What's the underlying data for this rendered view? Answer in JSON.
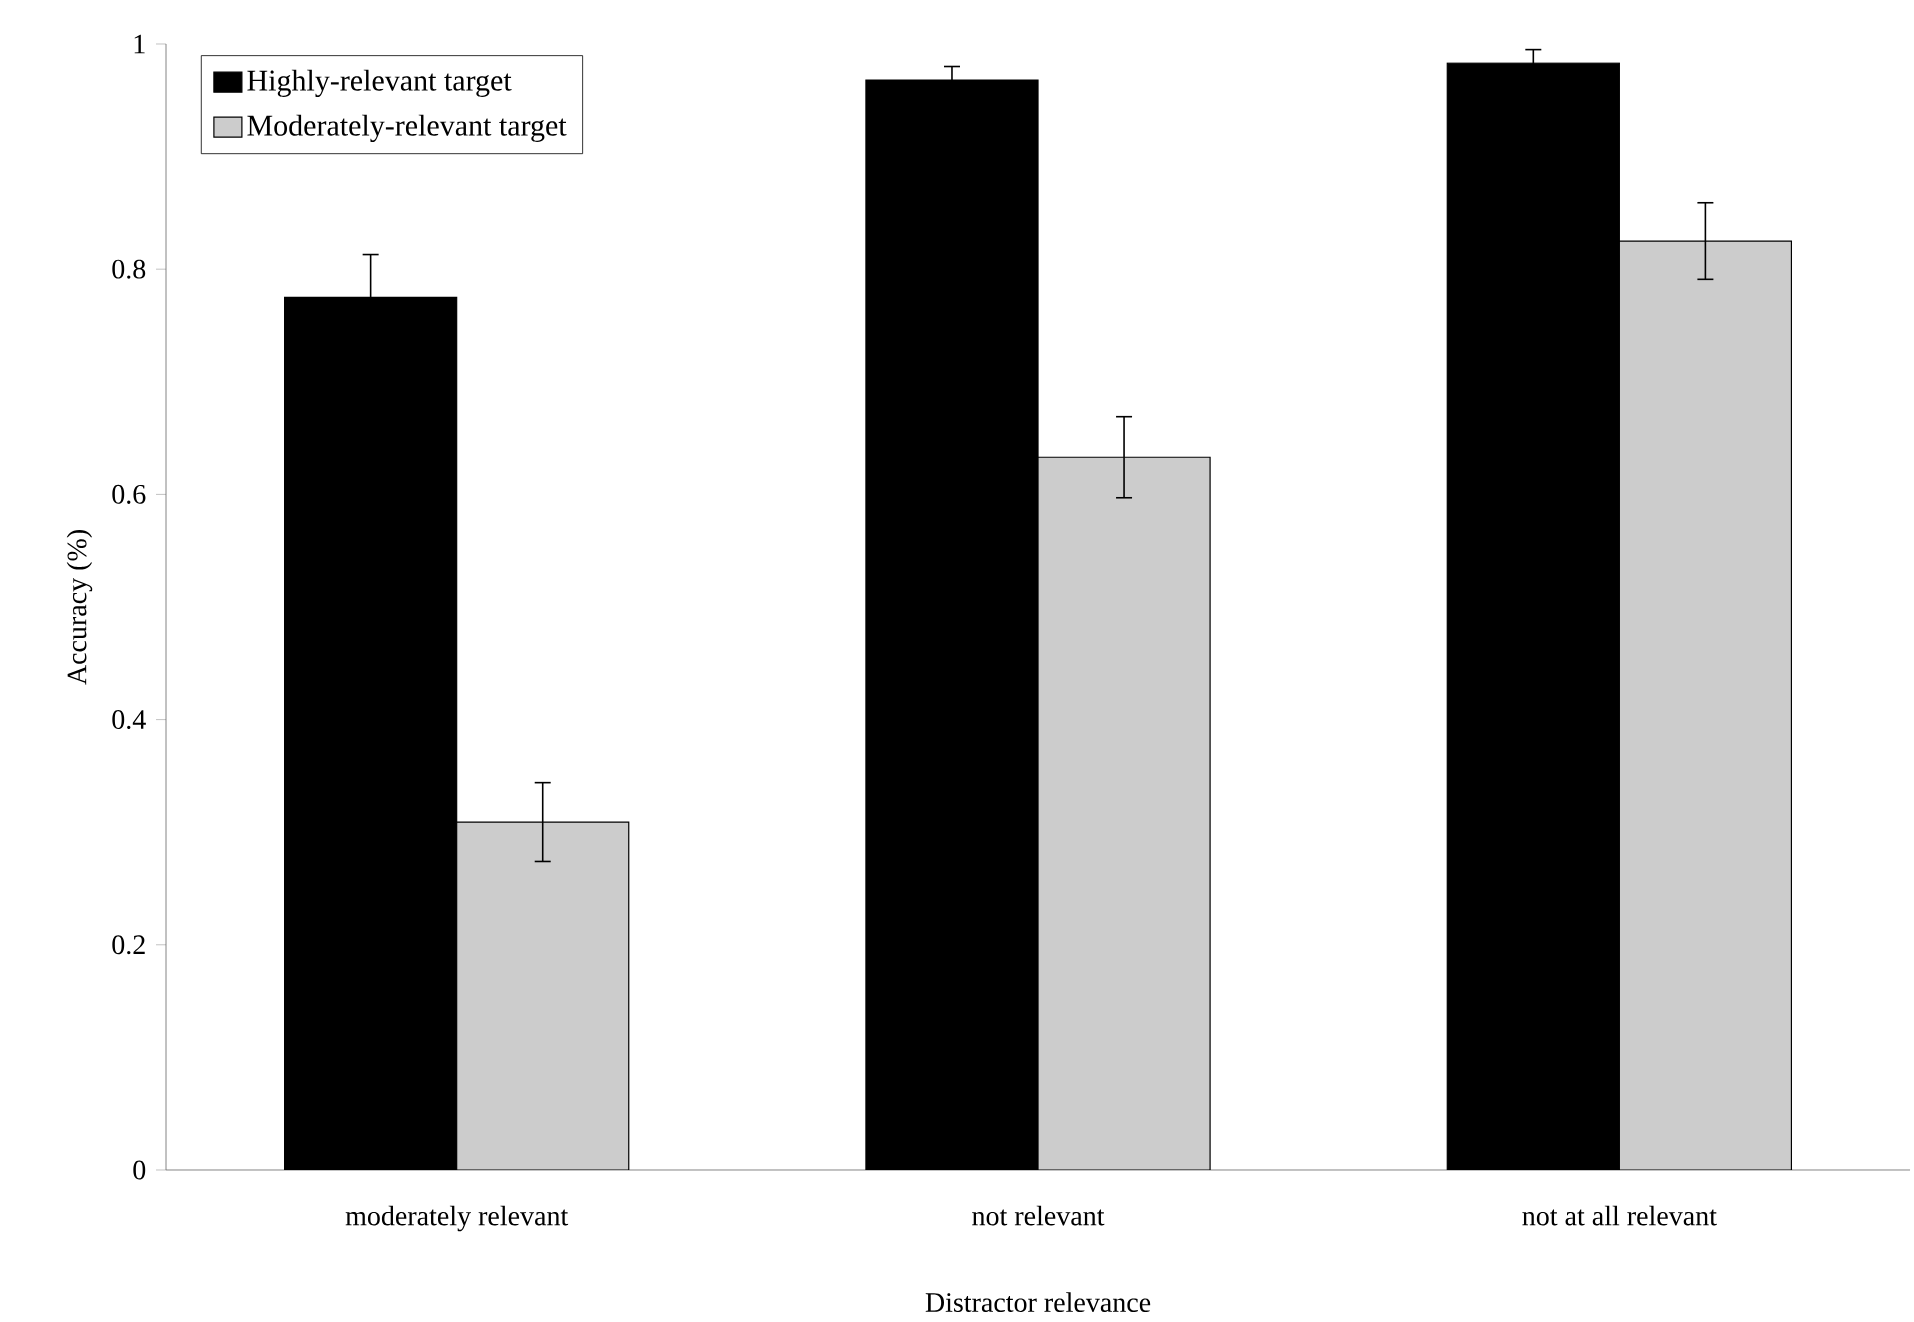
{
  "chart_data": {
    "type": "bar",
    "xlabel": "Distractor relevance",
    "ylabel": "Accuracy (%)",
    "categories": [
      "moderately relevant",
      "not relevant",
      "not at all relevant"
    ],
    "series": [
      {
        "name": "Highly-relevant target",
        "color": "#000000",
        "values": [
          0.775,
          0.968,
          0.983
        ],
        "errors": [
          0.038,
          0.012,
          0.012
        ]
      },
      {
        "name": "Moderately-relevant target",
        "color": "#cccccc",
        "values": [
          0.309,
          0.633,
          0.825
        ],
        "errors": [
          0.035,
          0.036,
          0.034
        ]
      }
    ],
    "ylim": [
      0,
      1
    ],
    "yticks": [
      0,
      0.2,
      0.4,
      0.6,
      0.8,
      1
    ],
    "grid": false,
    "legend": "top left"
  }
}
